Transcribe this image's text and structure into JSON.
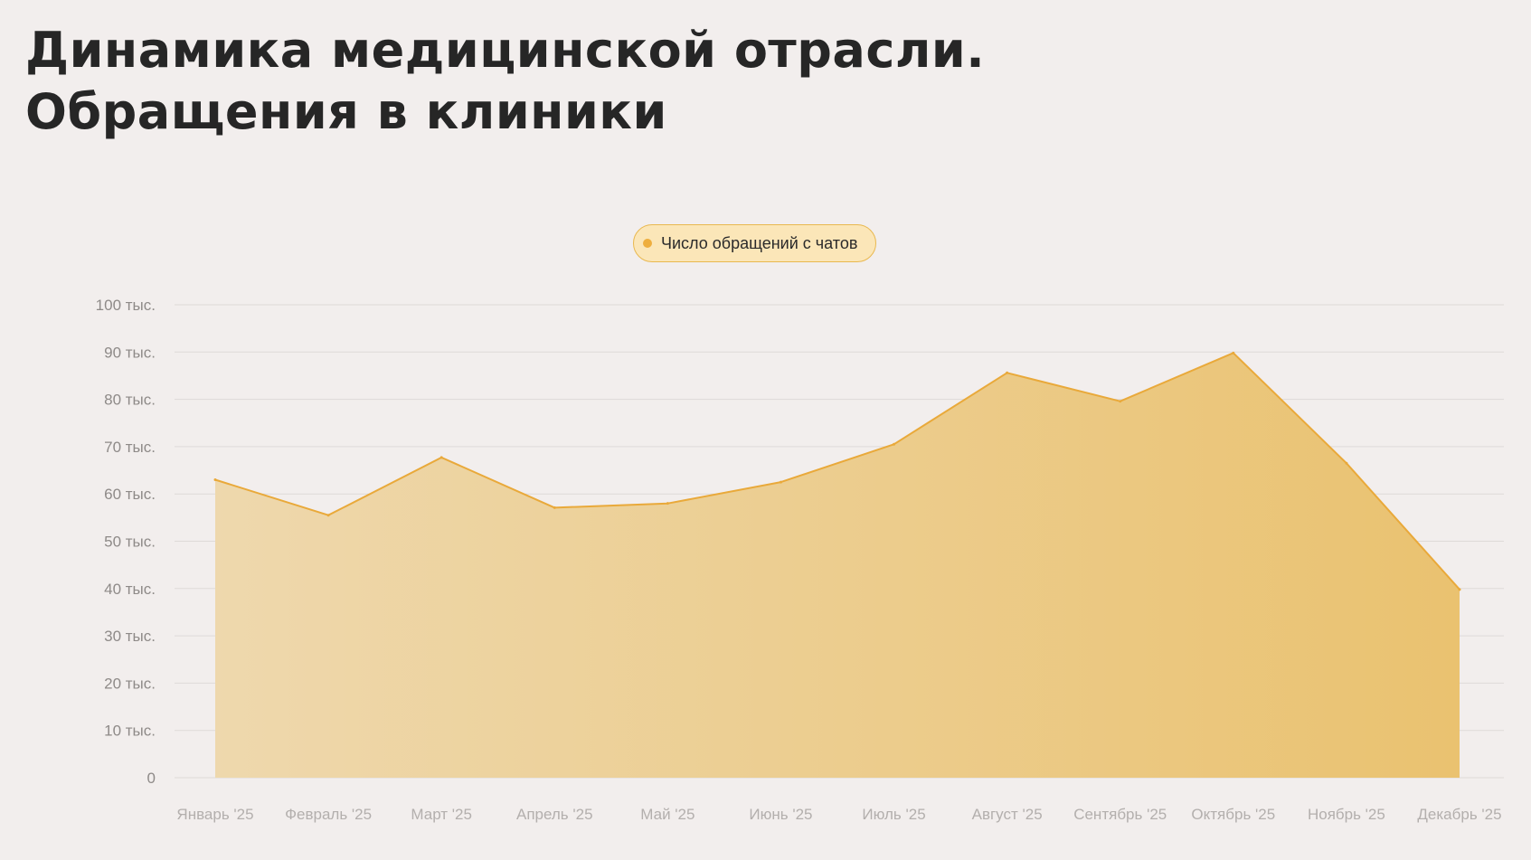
{
  "title": {
    "line1": "Динамика медицинской отрасли.",
    "line2": "Обращения в клиники"
  },
  "legend": {
    "label": "Число обращений с чатов",
    "color": "#eeae3e"
  },
  "colors": {
    "background": "#f2eeed",
    "line": "#e9a93a",
    "fill_start": "#eed8ad",
    "fill_end": "#eac270",
    "grid": "#dedad8"
  },
  "chart_data": {
    "type": "area",
    "categories": [
      "Январь '25",
      "Февраль '25",
      "Март '25",
      "Апрель '25",
      "Май '25",
      "Июнь '25",
      "Июль '25",
      "Август '25",
      "Сентябрь '25",
      "Октябрь '25",
      "Ноябрь '25",
      "Декабрь '25"
    ],
    "series": [
      {
        "name": "Число обращений с чатов",
        "values": [
          63000,
          55500,
          67700,
          57100,
          58000,
          62500,
          70500,
          85600,
          79600,
          89800,
          66500,
          39800
        ]
      }
    ],
    "yticks": [
      "0",
      "10 тыс.",
      "20 тыс.",
      "30 тыс.",
      "40 тыс.",
      "50 тыс.",
      "60 тыс.",
      "70 тыс.",
      "80 тыс.",
      "90 тыс.",
      "100 тыс."
    ],
    "ylim": [
      0,
      100000
    ],
    "grid": true,
    "legend_position": "top-center"
  }
}
